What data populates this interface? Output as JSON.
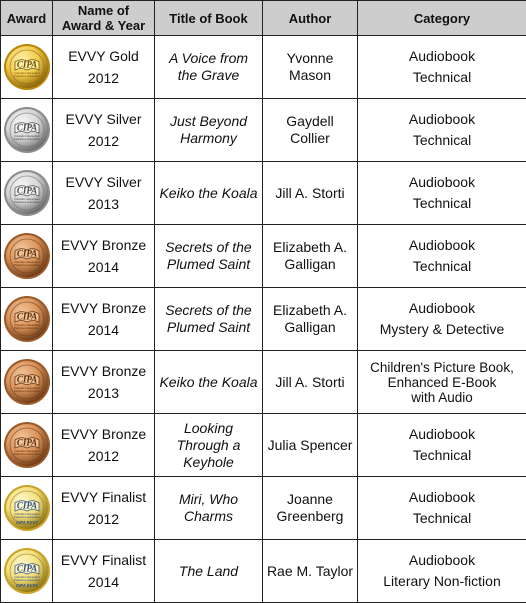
{
  "headers": {
    "award": "Award",
    "name": [
      "Name of",
      "Award & Year"
    ],
    "title": "Title of Book",
    "author": "Author",
    "category": "Category"
  },
  "colors": {
    "header_bg": "#cdcdcd",
    "border": "#222222"
  },
  "rows": [
    {
      "medal": "gold",
      "award": "EVVY Gold",
      "year": "2012",
      "title": [
        "A Voice from",
        "the Grave"
      ],
      "author": [
        "Yvonne",
        "Mason"
      ],
      "category": [
        "Audiobook",
        "Technical"
      ]
    },
    {
      "medal": "silver",
      "award": "EVVY Silver",
      "year": "2012",
      "title": [
        "Just Beyond",
        "Harmony"
      ],
      "author": [
        "Gaydell",
        "Collier"
      ],
      "category": [
        "Audiobook",
        "Technical"
      ]
    },
    {
      "medal": "silver",
      "award": "EVVY Silver",
      "year": "2013",
      "title": [
        "Keiko the Koala"
      ],
      "author": [
        "Jill A. Storti"
      ],
      "category": [
        "Audiobook",
        "Technical"
      ]
    },
    {
      "medal": "bronze",
      "award": "EVVY Bronze",
      "year": "2014",
      "title": [
        "Secrets of the",
        "Plumed Saint"
      ],
      "author": [
        "Elizabeth A.",
        "Galligan"
      ],
      "category": [
        "Audiobook",
        "Technical"
      ]
    },
    {
      "medal": "bronze",
      "award": "EVVY Bronze",
      "year": "2014",
      "title": [
        "Secrets of the",
        "Plumed Saint"
      ],
      "author": [
        "Elizabeth A.",
        "Galligan"
      ],
      "category": [
        "Audiobook",
        "Mystery & Detective"
      ]
    },
    {
      "medal": "bronze",
      "award": "EVVY Bronze",
      "year": "2013",
      "title": [
        "Keiko the Koala"
      ],
      "author": [
        "Jill A. Storti"
      ],
      "category": [
        "Children's Picture Book,",
        "Enhanced E-Book",
        "with Audio"
      ]
    },
    {
      "medal": "bronze",
      "award": "EVVY Bronze",
      "year": "2012",
      "title": [
        "Looking",
        "Through a",
        "Keyhole"
      ],
      "author": [
        "Julia Spencer"
      ],
      "category": [
        "Audiobook",
        "Technical"
      ]
    },
    {
      "medal": "finalist",
      "award": "EVVY Finalist",
      "year": "2012",
      "title": [
        "Miri, Who",
        "Charms"
      ],
      "author": [
        "Joanne",
        "Greenberg"
      ],
      "category": [
        "Audiobook",
        "Technical"
      ]
    },
    {
      "medal": "finalist",
      "award": "EVVY Finalist",
      "year": "2014",
      "title": [
        "The Land"
      ],
      "author": [
        "Rae M. Taylor"
      ],
      "category": [
        "Audiobook",
        "Literary Non-fiction"
      ]
    }
  ],
  "seal_text": {
    "cipa": "CIPA",
    "finalist_caption": "CIPA EVVY",
    "org_line1": "Colorado",
    "org_line2": "Independent",
    "org_line3": "Publishers",
    "org_line4": "Association"
  }
}
